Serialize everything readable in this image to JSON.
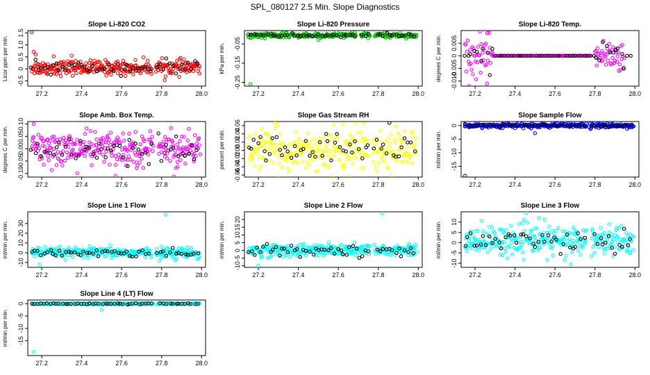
{
  "figure": {
    "title": "SPL_080127  2.5 Min. Slope Diagnostics"
  },
  "chart_data": [
    {
      "type": "scatter",
      "title": "Slope Li-820 CO2",
      "ylabel": "Licor ppm per min.",
      "color": "#ff0000",
      "xlim": [
        27.13,
        28.02
      ],
      "ylim": [
        -0.72,
        1.6
      ],
      "xticks": [
        27.2,
        27.4,
        27.6,
        27.8,
        28.0
      ],
      "xtick_labels": [
        "27.2",
        "27.4",
        "27.6",
        "27.8",
        "28.0"
      ],
      "yticks": [
        -0.5,
        0,
        0.5,
        1.0,
        1.5
      ],
      "ytick_labels": [
        "-0.5",
        "0",
        "0.5",
        "1.0",
        "1.5"
      ],
      "gaps": [
        [
          27.75,
          27.77
        ]
      ],
      "spread": {
        "center": 0.05,
        "sd": 0.15,
        "count": 300
      },
      "outliers": [
        [
          27.15,
          1.53
        ],
        [
          27.16,
          0.72
        ],
        [
          27.17,
          0.6
        ],
        [
          27.26,
          0.52
        ],
        [
          27.35,
          0.55
        ]
      ]
    },
    {
      "type": "scatter",
      "title": "Slope Li-820 Pressure",
      "ylabel": "kPa per min.",
      "color": "#00bb00",
      "xlim": [
        27.13,
        28.02
      ],
      "ylim": [
        -0.27,
        0.02
      ],
      "xticks": [
        27.2,
        27.4,
        27.6,
        27.8,
        28.0
      ],
      "xtick_labels": [
        "27.2",
        "27.4",
        "27.6",
        "27.8",
        "28.0"
      ],
      "yticks": [
        -0.25,
        -0.15,
        -0.05
      ],
      "ytick_labels": [
        "-0.25",
        "-0.15",
        "-0.05"
      ],
      "gaps": [
        [
          27.69,
          27.71
        ],
        [
          27.76,
          27.78
        ]
      ],
      "spread": {
        "center": -0.005,
        "sd": 0.006,
        "count": 300
      },
      "outliers": [
        [
          27.16,
          -0.26
        ],
        [
          27.5,
          -0.03
        ]
      ]
    },
    {
      "type": "scatter",
      "title": "Slope Li-820 Temp.",
      "ylabel": "degrees C per min.",
      "color": "#ff00ff",
      "xlim": [
        27.13,
        28.02
      ],
      "ylim": [
        -0.012,
        0.01
      ],
      "xticks": [
        27.2,
        27.4,
        27.6,
        27.8,
        28.0
      ],
      "xtick_labels": [
        "27.2",
        "27.4",
        "27.6",
        "27.8",
        "28.0"
      ],
      "yticks": [
        -0.01,
        -0.005,
        0,
        0.005
      ],
      "ytick_labels": [
        "-0.010",
        "-0.005",
        "0",
        "0.005"
      ],
      "gaps": [],
      "segments": [
        {
          "from": 27.15,
          "to": 27.29,
          "sd": 0.004
        },
        {
          "from": 27.29,
          "to": 27.78,
          "sd": 0.0
        },
        {
          "from": 27.8,
          "to": 27.95,
          "sd": 0.0035
        }
      ],
      "outliers": [
        [
          27.27,
          0.009
        ],
        [
          27.26,
          -0.011
        ]
      ]
    },
    {
      "type": "scatter",
      "title": "Slope Amb. Box Temp.",
      "ylabel": "degrees C per min.",
      "color": "#ff00ff",
      "xlim": [
        27.13,
        28.02
      ],
      "ylim": [
        -0.115,
        0.11
      ],
      "xticks": [
        27.2,
        27.4,
        27.6,
        27.8,
        28.0
      ],
      "xtick_labels": [
        "27.2",
        "27.4",
        "27.6",
        "27.8",
        "28.0"
      ],
      "yticks": [
        -0.1,
        -0.05,
        0,
        0.05,
        0.1
      ],
      "ytick_labels": [
        "-0.10",
        "-0.05",
        "0.00",
        "0.05",
        "0.10"
      ],
      "gaps": [
        [
          27.76,
          27.78
        ]
      ],
      "spread": {
        "center": 0.0,
        "sd": 0.035,
        "count": 300
      },
      "outliers": [
        [
          27.16,
          0.1
        ],
        [
          27.57,
          -0.11
        ]
      ]
    },
    {
      "type": "scatter",
      "title": "Slope Gas Stream RH",
      "ylabel": "percent per min.",
      "color": "#ffff00",
      "xlim": [
        27.13,
        28.02
      ],
      "ylim": [
        -0.065,
        0.07
      ],
      "xticks": [
        27.2,
        27.4,
        27.6,
        27.8,
        28.0
      ],
      "xtick_labels": [
        "27.2",
        "27.4",
        "27.6",
        "27.8",
        "28.0"
      ],
      "yticks": [
        -0.06,
        -0.04,
        -0.02,
        0,
        0.02,
        0.04,
        0.06
      ],
      "ytick_labels": [
        "-0.06",
        "-0.04",
        "-0.02",
        "0.00",
        "0.02",
        "0.04",
        "0.06"
      ],
      "gaps": [
        [
          27.75,
          27.77
        ]
      ],
      "spread": {
        "center": 0.0,
        "sd": 0.025,
        "count": 300
      },
      "outliers": [
        [
          27.73,
          0.065
        ]
      ]
    },
    {
      "type": "scatter",
      "title": "Slope Sample Flow",
      "ylabel": "ml/min per min.",
      "color": "#0000ff",
      "xlim": [
        27.13,
        28.02
      ],
      "ylim": [
        -19,
        1.5
      ],
      "xticks": [
        27.2,
        27.4,
        27.6,
        27.8,
        28.0
      ],
      "xtick_labels": [
        "27.2",
        "27.4",
        "27.6",
        "27.8",
        "28.0"
      ],
      "yticks": [
        -15,
        -10,
        -5,
        0
      ],
      "ytick_labels": [
        "-15",
        "-10",
        "-5",
        "0"
      ],
      "gaps": [
        [
          27.76,
          27.77
        ]
      ],
      "spread": {
        "center": 0.0,
        "sd": 0.4,
        "count": 300
      },
      "outliers": [
        [
          27.15,
          -18.5
        ],
        [
          27.5,
          -2.8
        ]
      ]
    },
    {
      "type": "scatter",
      "title": "Slope Line 1 Flow",
      "ylabel": "ml/min per min.",
      "color": "#00ffff",
      "xlim": [
        27.13,
        28.02
      ],
      "ylim": [
        -15,
        42
      ],
      "xticks": [
        27.2,
        27.4,
        27.6,
        27.8,
        28.0
      ],
      "xtick_labels": [
        "27.2",
        "27.4",
        "27.6",
        "27.8",
        "28.0"
      ],
      "yticks": [
        -10,
        0,
        10,
        20,
        30
      ],
      "ytick_labels": [
        "-10",
        "0",
        "10",
        "20",
        "30"
      ],
      "gaps": [
        [
          27.75,
          27.77
        ]
      ],
      "spread": {
        "center": 0.0,
        "sd": 2.5,
        "count": 300
      },
      "outliers": [
        [
          27.82,
          39
        ],
        [
          27.19,
          -12
        ],
        [
          27.87,
          -8
        ]
      ]
    },
    {
      "type": "scatter",
      "title": "Slope Line 2 Flow",
      "ylabel": "ml/min per min.",
      "color": "#00ffff",
      "xlim": [
        27.13,
        28.02
      ],
      "ylim": [
        -11,
        25
      ],
      "xticks": [
        27.2,
        27.4,
        27.6,
        27.8,
        28.0
      ],
      "xtick_labels": [
        "27.2",
        "27.4",
        "27.6",
        "27.8",
        "28.0"
      ],
      "yticks": [
        -10,
        -5,
        0,
        5,
        10,
        15,
        20
      ],
      "ytick_labels": [
        "-10",
        "-5",
        "0",
        "5",
        "10",
        "15",
        "20"
      ],
      "gaps": [
        [
          27.76,
          27.78
        ]
      ],
      "spread": {
        "center": 0.0,
        "sd": 2.0,
        "count": 300
      },
      "outliers": [
        [
          27.82,
          24
        ],
        [
          27.2,
          -10
        ]
      ]
    },
    {
      "type": "scatter",
      "title": "Slope Line 3 Flow",
      "ylabel": "ml/min per min.",
      "color": "#00ffff",
      "xlim": [
        27.13,
        28.02
      ],
      "ylim": [
        -12,
        15
      ],
      "xticks": [
        27.2,
        27.4,
        27.6,
        27.8,
        28.0
      ],
      "xtick_labels": [
        "27.2",
        "27.4",
        "27.6",
        "27.8",
        "28.0"
      ],
      "yticks": [
        -10,
        -5,
        0,
        5,
        10
      ],
      "ytick_labels": [
        "-10",
        "-5",
        "0",
        "5",
        "10"
      ],
      "gaps": [
        [
          27.76,
          27.78
        ]
      ],
      "spread": {
        "center": 1.0,
        "sd": 3.5,
        "count": 300
      },
      "outliers": [
        [
          27.52,
          12
        ],
        [
          27.68,
          -10.5
        ],
        [
          27.65,
          -8.5
        ]
      ]
    },
    {
      "type": "scatter",
      "title": "Slope Line 4 (LT) Flow",
      "ylabel": "ml/min per min.",
      "color": "#00ffff",
      "xlim": [
        27.13,
        28.02
      ],
      "ylim": [
        -21,
        1.5
      ],
      "xticks": [
        27.2,
        27.4,
        27.6,
        27.8,
        28.0
      ],
      "xtick_labels": [
        "27.2",
        "27.4",
        "27.6",
        "27.8",
        "28.0"
      ],
      "yticks": [
        -15,
        -10,
        -5,
        0
      ],
      "ytick_labels": [
        "-15",
        "-10",
        "-5",
        "0"
      ],
      "gaps": [
        [
          27.76,
          27.78
        ]
      ],
      "spread": {
        "center": 0.0,
        "sd": 0.15,
        "count": 300
      },
      "outliers": [
        [
          27.16,
          -19.5
        ],
        [
          27.5,
          -2.5
        ]
      ]
    }
  ]
}
